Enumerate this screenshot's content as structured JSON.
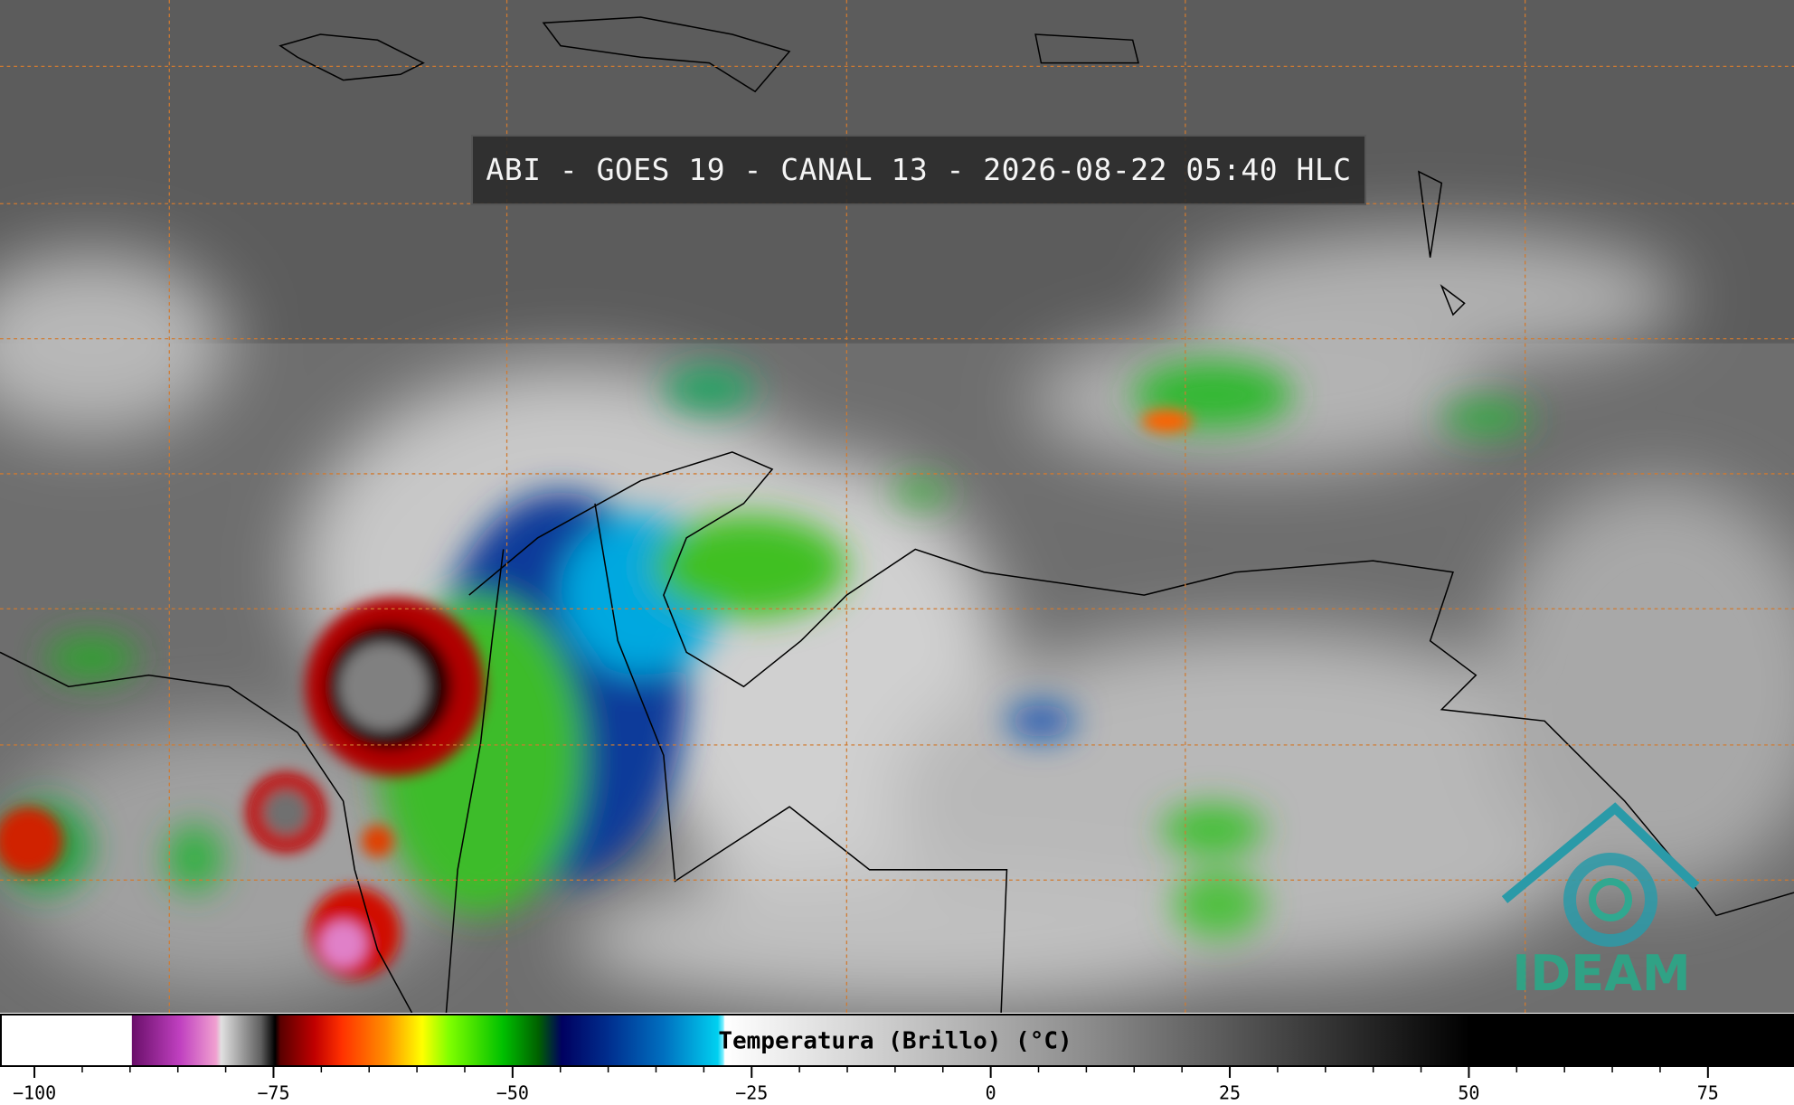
{
  "header": {
    "title": "ABI - GOES 19 - CANAL 13 - 2026-08-22 05:40 HLC"
  },
  "colorbar": {
    "label": "Temperatura (Brillo) (°C)",
    "range": [
      -103.6,
      84
    ],
    "ticks": [
      {
        "value": -100,
        "label": "−100"
      },
      {
        "value": -75,
        "label": "−75"
      },
      {
        "value": -50,
        "label": "−50"
      },
      {
        "value": -25,
        "label": "−25"
      },
      0,
      25,
      50,
      75
    ]
  },
  "logo": {
    "text": "IDEAM"
  }
}
